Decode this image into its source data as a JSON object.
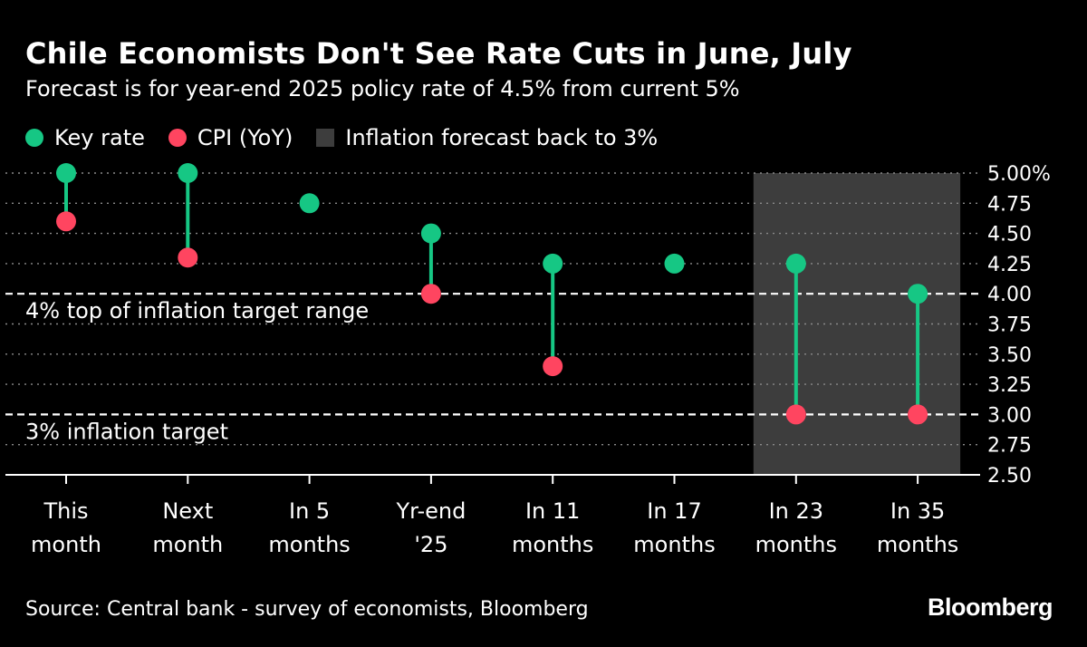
{
  "header": {
    "title": "Chile Economists Don't See Rate Cuts in June, July",
    "subtitle": "Forecast is for year-end 2025 policy rate of 4.5% from current 5%"
  },
  "legend": {
    "items": [
      {
        "label": "Key rate",
        "color": "#16c784"
      },
      {
        "label": "CPI (YoY)",
        "color": "#ff4560"
      },
      {
        "label": "Inflation forecast back to 3%",
        "color": "#3d3d3d"
      }
    ]
  },
  "chart_data": {
    "type": "dot-range",
    "title": "Chile Economists Don't See Rate Cuts in June, July",
    "subtitle": "Forecast is for year-end 2025 policy rate of 4.5% from current 5%",
    "categories": [
      [
        "This",
        "month"
      ],
      [
        "Next",
        "month"
      ],
      [
        "In 5",
        "months"
      ],
      [
        "Yr-end",
        "'25"
      ],
      [
        "In 11",
        "months"
      ],
      [
        "In 17",
        "months"
      ],
      [
        "In 23",
        "months"
      ],
      [
        "In 35",
        "months"
      ]
    ],
    "series": [
      {
        "name": "Key rate",
        "color": "#16c784",
        "values": [
          5.0,
          5.0,
          4.75,
          4.5,
          4.25,
          4.25,
          4.25,
          4.0
        ]
      },
      {
        "name": "CPI (YoY)",
        "color": "#ff4560",
        "values": [
          4.6,
          4.3,
          null,
          4.0,
          3.4,
          null,
          3.0,
          3.0
        ]
      }
    ],
    "shaded_region": {
      "label": "Inflation forecast back to 3%",
      "from_category": 6,
      "to_category": 7,
      "color": "#3d3d3d"
    },
    "reference_lines": [
      {
        "value": 4.0,
        "label": "4% top of inflation target range"
      },
      {
        "value": 3.0,
        "label": "3% inflation target"
      }
    ],
    "y_axis": {
      "ylim": [
        2.5,
        5.0
      ],
      "ticks": [
        5.0,
        4.75,
        4.5,
        4.25,
        4.0,
        3.75,
        3.5,
        3.25,
        3.0,
        2.75,
        2.5
      ],
      "tick_labels": [
        "5.00%",
        "4.75",
        "4.50",
        "4.25",
        "4.00",
        "3.75",
        "3.50",
        "3.25",
        "3.00",
        "2.75",
        "2.50"
      ],
      "position": "right"
    },
    "grid": "dotted horizontal"
  },
  "footer": {
    "source": "Source: Central bank - survey of economists, Bloomberg",
    "logo": "Bloomberg"
  }
}
